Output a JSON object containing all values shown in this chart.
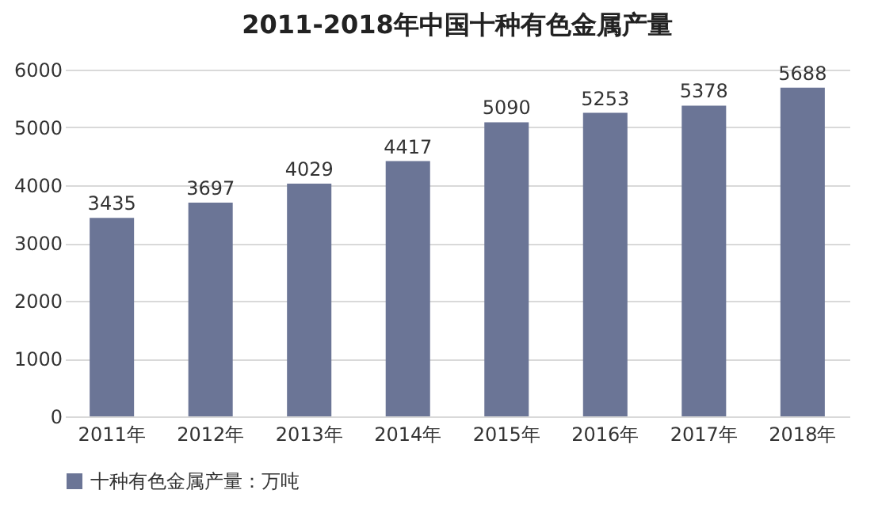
{
  "chart_data": {
    "type": "bar",
    "title": "2011-2018年中国十种有色金属产量",
    "categories": [
      "2011年",
      "2012年",
      "2013年",
      "2014年",
      "2015年",
      "2016年",
      "2017年",
      "2018年"
    ],
    "series": [
      {
        "name": "十种有色金属产量：万吨",
        "color": "#6b7596",
        "values": [
          3435,
          3697,
          4029,
          4417,
          5090,
          5253,
          5378,
          5688
        ]
      }
    ],
    "ylim": [
      0,
      6000
    ],
    "yticks": [
      0,
      1000,
      2000,
      3000,
      4000,
      5000,
      6000
    ],
    "grid": "y",
    "legend": "bottom",
    "data_labels": true
  }
}
